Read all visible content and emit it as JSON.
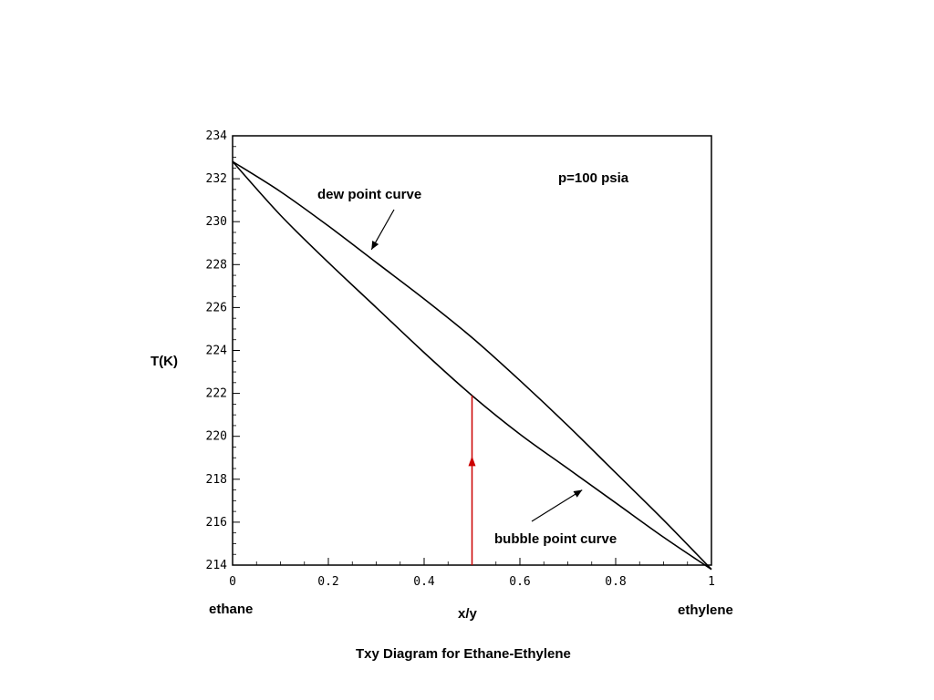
{
  "chart_data": {
    "type": "line",
    "title": "Txy Diagram for Ethane-Ethylene",
    "xlabel": "x/y",
    "ylabel": "T(K)",
    "xlim": [
      0,
      1
    ],
    "ylim": [
      214,
      234
    ],
    "x_ticks": [
      0,
      0.2,
      0.4,
      0.6,
      0.8,
      1
    ],
    "x_tick_labels": [
      "0",
      "0.2",
      "0.4",
      "0.6",
      "0.8",
      "1"
    ],
    "y_ticks": [
      214,
      216,
      218,
      220,
      222,
      224,
      226,
      228,
      230,
      232,
      234
    ],
    "y_tick_labels": [
      "214",
      "216",
      "218",
      "220",
      "222",
      "224",
      "226",
      "228",
      "230",
      "232",
      "234"
    ],
    "x_end_labels": {
      "left": "ethane",
      "right": "ethylene"
    },
    "pressure_label": "p=100 psia",
    "grid": false,
    "series": [
      {
        "name": "dew point curve",
        "color": "#000000",
        "x": [
          0,
          0.1,
          0.2,
          0.3,
          0.4,
          0.5,
          0.6,
          0.7,
          0.8,
          0.9,
          1.0
        ],
        "y": [
          232.8,
          231.4,
          229.8,
          228.1,
          226.4,
          224.6,
          222.6,
          220.5,
          218.3,
          216.1,
          213.8
        ]
      },
      {
        "name": "bubble point curve",
        "color": "#000000",
        "x": [
          0,
          0.1,
          0.2,
          0.3,
          0.4,
          0.5,
          0.6,
          0.7,
          0.8,
          0.9,
          1.0
        ],
        "y": [
          232.8,
          230.3,
          228.1,
          226.0,
          223.9,
          221.9,
          220.1,
          218.5,
          216.9,
          215.3,
          213.8
        ]
      }
    ],
    "annotations": [
      {
        "text": "dew point curve",
        "arrow_to": [
          0.29,
          228.7
        ]
      },
      {
        "text": "bubble point curve",
        "arrow_to": [
          0.73,
          217.5
        ]
      }
    ],
    "vertical_marker": {
      "x": 0.5,
      "y_from": 214,
      "y_to": 221.9,
      "color": "#cc0000",
      "arrow_at_y": 218.7
    }
  }
}
